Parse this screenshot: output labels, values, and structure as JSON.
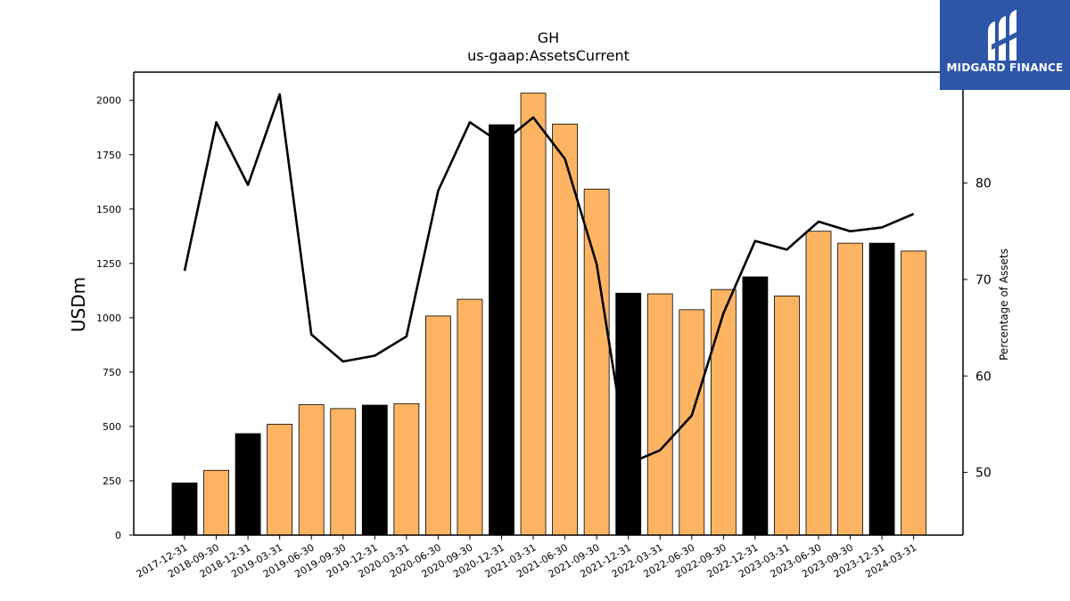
{
  "logo": {
    "text": "MIDGARD FINANCE",
    "icon": "midgard-mark-icon",
    "background": "#2d56a8"
  },
  "chart_data": {
    "type": "bar",
    "title": "GH",
    "subtitle": "us-gaap:AssetsCurrent",
    "ylabel": "USDm",
    "y2label": "Percentage of Assets",
    "xlabel": "",
    "categories": [
      "2017-12-31",
      "2018-09-30",
      "2018-12-31",
      "2019-03-31",
      "2019-06-30",
      "2019-09-30",
      "2019-12-31",
      "2020-03-31",
      "2020-06-30",
      "2020-09-30",
      "2020-12-31",
      "2021-03-31",
      "2021-06-30",
      "2021-09-30",
      "2021-12-31",
      "2022-03-31",
      "2022-06-30",
      "2022-09-30",
      "2022-12-31",
      "2023-03-31",
      "2023-06-30",
      "2023-09-30",
      "2023-12-31",
      "2024-03-31"
    ],
    "values": [
      240,
      298,
      467,
      510,
      600,
      582,
      598,
      605,
      1008,
      1085,
      1888,
      2033,
      1891,
      1592,
      1113,
      1110,
      1037,
      1130,
      1188,
      1100,
      1398,
      1343,
      1343,
      1307
    ],
    "bar_colors": [
      "#000000",
      "#fdb462",
      "#000000",
      "#fdb462",
      "#fdb462",
      "#fdb462",
      "#000000",
      "#fdb462",
      "#fdb462",
      "#fdb462",
      "#000000",
      "#fdb462",
      "#fdb462",
      "#fdb462",
      "#000000",
      "#fdb462",
      "#fdb462",
      "#fdb462",
      "#000000",
      "#fdb462",
      "#fdb462",
      "#fdb462",
      "#000000",
      "#fdb462"
    ],
    "series": [
      {
        "values": [
          70.9,
          86.3,
          79.8,
          89.2,
          64.3,
          61.5,
          62.1,
          64.1,
          79.2,
          86.3,
          84.1,
          86.8,
          82.5,
          71.6,
          50.9,
          52.3,
          55.9,
          66.5,
          74.0,
          73.1,
          76.0,
          75.0,
          75.4,
          76.8
        ]
      }
    ],
    "ylim": [
      0,
      2130
    ],
    "yticks": [
      0,
      250,
      500,
      750,
      1000,
      1250,
      1500,
      1750,
      2000
    ],
    "y2lim": [
      43.5,
      91.5
    ],
    "y2ticks": [
      50,
      60,
      70,
      80
    ],
    "grid": false,
    "legend": "none",
    "colors": {
      "bar_primary": "#fdb462",
      "bar_highlight": "#000000",
      "line": "#000000"
    }
  }
}
